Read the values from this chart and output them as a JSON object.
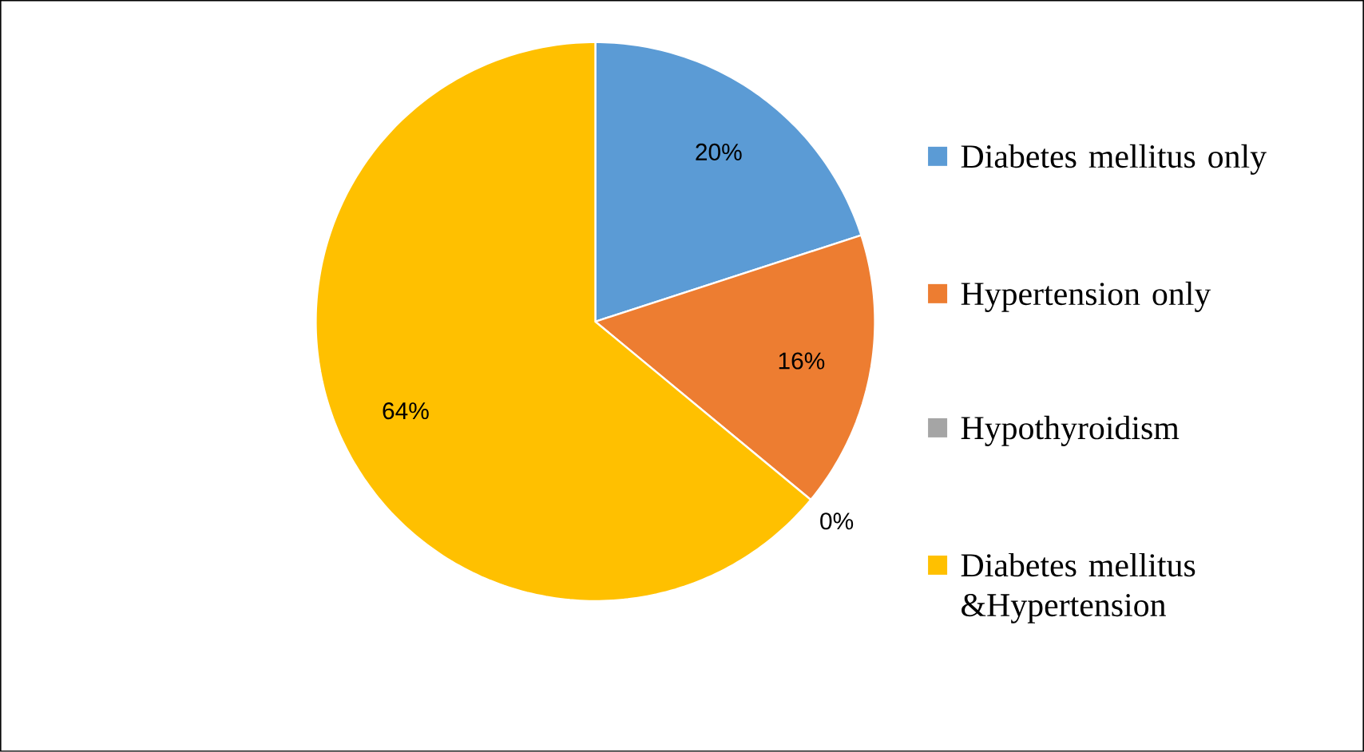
{
  "chart_data": {
    "type": "pie",
    "categories": [
      "Diabetes mellitus only",
      "Hypertension only",
      "Hypothyroidism",
      "Diabetes mellitus &Hypertension"
    ],
    "values": [
      20,
      16,
      0,
      64
    ],
    "colors": [
      "#5b9bd5",
      "#ed7d31",
      "#a5a5a5",
      "#ffc000"
    ],
    "value_labels": [
      "20%",
      "16%",
      "0%",
      "64%"
    ],
    "legend": "right"
  }
}
